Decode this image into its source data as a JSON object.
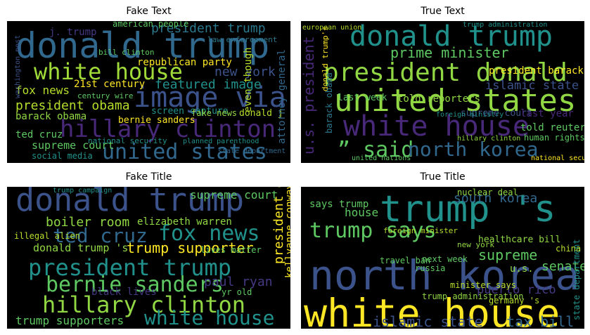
{
  "chart_data": [
    {
      "type": "wordcloud",
      "title": "Fake Text",
      "words": [
        {
          "text": "donald trump",
          "color": "#31688e"
        },
        {
          "text": "white house",
          "color": "#a0da39"
        },
        {
          "text": "president trump",
          "color": "#2a788e"
        },
        {
          "text": "american people",
          "color": "#5ec962"
        },
        {
          "text": "new york",
          "color": "#3b528b"
        },
        {
          "text": "republican party",
          "color": "#fde725"
        },
        {
          "text": "image via",
          "color": "#3b528b"
        },
        {
          "text": "featured image",
          "color": "#21918c"
        },
        {
          "text": "fox news",
          "color": "#b5de2b"
        },
        {
          "text": "21st century",
          "color": "#fde725"
        },
        {
          "text": "president obama",
          "color": "#b5de2b"
        },
        {
          "text": "barack obama",
          "color": "#90d743"
        },
        {
          "text": "hillary clinton",
          "color": "#482878"
        },
        {
          "text": "united states",
          "color": "#31688e"
        },
        {
          "text": "supreme court",
          "color": "#5ec962"
        },
        {
          "text": "ted cruz",
          "color": "#5ec962"
        },
        {
          "text": "bernie sanders",
          "color": "#fde725"
        },
        {
          "text": "national security",
          "color": "#21918c"
        },
        {
          "text": "social media",
          "color": "#21918c"
        },
        {
          "text": "screen capture",
          "color": "#21918c"
        },
        {
          "text": "fake news",
          "color": "#90d743"
        },
        {
          "text": "donald j",
          "color": "#b5de2b"
        },
        {
          "text": "law enforcement",
          "color": "#2a788e"
        },
        {
          "text": "even though",
          "color": "#b5de2b"
        },
        {
          "text": "attorney general",
          "color": "#31688e"
        },
        {
          "text": "washington post",
          "color": "#3b528b"
        },
        {
          "text": "century wire",
          "color": "#5ec962"
        },
        {
          "text": "j. trump",
          "color": "#443983"
        },
        {
          "text": "bill clinton",
          "color": "#5ec962"
        },
        {
          "text": "planned parenthood",
          "color": "#21918c"
        },
        {
          "text": "state department",
          "color": "#31688e"
        }
      ]
    },
    {
      "type": "wordcloud",
      "title": "True Text",
      "words": [
        {
          "text": "donald trump",
          "color": "#21918c"
        },
        {
          "text": "prime minister",
          "color": "#5ec962"
        },
        {
          "text": "president donald",
          "color": "#90d743"
        },
        {
          "text": "united states",
          "color": "#90d743"
        },
        {
          "text": "white house",
          "color": "#482878"
        },
        {
          "text": "” said",
          "color": "#5ec962"
        },
        {
          "text": "north korea",
          "color": "#31688e"
        },
        {
          "text": "islamic state",
          "color": "#3b528b"
        },
        {
          "text": "president barack",
          "color": "#fde725"
        },
        {
          "text": "last week",
          "color": "#5ec962"
        },
        {
          "text": "told reporters",
          "color": "#90d743"
        },
        {
          "text": "told reuters",
          "color": "#5ec962"
        },
        {
          "text": "supreme court",
          "color": "#3b528b"
        },
        {
          "text": "last year",
          "color": "#482878"
        },
        {
          "text": "human rights",
          "color": "#5ec962"
        },
        {
          "text": "u.s. president",
          "color": "#482878"
        },
        {
          "text": "donald trump's",
          "color": "#fde725"
        },
        {
          "text": "barack obama",
          "color": "#2a788e"
        },
        {
          "text": "united nations",
          "color": "#5ec962"
        },
        {
          "text": "national security",
          "color": "#fde725"
        },
        {
          "text": "trump administration",
          "color": "#21918c"
        },
        {
          "text": "european union",
          "color": "#b5de2b"
        },
        {
          "text": "foreign ministry",
          "color": "#21918c"
        },
        {
          "text": "hillary clinton",
          "color": "#90d743"
        }
      ]
    },
    {
      "type": "wordcloud",
      "title": "Fake Title",
      "words": [
        {
          "text": "donald trump",
          "color": "#3b528b"
        },
        {
          "text": "boiler room",
          "color": "#90d743"
        },
        {
          "text": "ted cruz",
          "color": "#31688e"
        },
        {
          "text": "fox news",
          "color": "#21918c"
        },
        {
          "text": "trump supporter",
          "color": "#fde725"
        },
        {
          "text": "elizabeth warren",
          "color": "#90d743"
        },
        {
          "text": "supreme court",
          "color": "#5ec962"
        },
        {
          "text": "president obama",
          "color": "#fde725"
        },
        {
          "text": "kellyanne conway",
          "color": "#fde725"
        },
        {
          "text": "donald trump 's",
          "color": "#90d743"
        },
        {
          "text": "president trump",
          "color": "#21918c"
        },
        {
          "text": "bernie sanders",
          "color": "#5ec962"
        },
        {
          "text": "hillary clinton",
          "color": "#90d743"
        },
        {
          "text": "white house",
          "color": "#21918c"
        },
        {
          "text": "trump supporters",
          "color": "#5ec962"
        },
        {
          "text": "paul ryan",
          "color": "#443983"
        },
        {
          "text": "black lives",
          "color": "#443983"
        },
        {
          "text": "lives matter",
          "color": "#5ec962"
        },
        {
          "text": "illegal alien",
          "color": "#b5de2b"
        },
        {
          "text": "trump campaign",
          "color": "#21918c"
        },
        {
          "text": "yr old",
          "color": "#5ec962"
        }
      ]
    },
    {
      "type": "wordcloud",
      "title": "True Title",
      "words": [
        {
          "text": "trump 's",
          "color": "#21918c"
        },
        {
          "text": "north korea",
          "color": "#3b528b"
        },
        {
          "text": "white house",
          "color": "#fde725"
        },
        {
          "text": "trump says",
          "color": "#5ec962"
        },
        {
          "text": "south korea",
          "color": "#31688e"
        },
        {
          "text": "says trump",
          "color": "#5ec962"
        },
        {
          "text": "healthcare bill",
          "color": "#90d743"
        },
        {
          "text": "supreme",
          "color": "#5ec962"
        },
        {
          "text": "senate",
          "color": "#5ec962"
        },
        {
          "text": "u.s.",
          "color": "#90d743"
        },
        {
          "text": "puerto rico",
          "color": "#443983"
        },
        {
          "text": "islamic state",
          "color": "#3b528b"
        },
        {
          "text": "tax bill",
          "color": "#31688e"
        },
        {
          "text": "house",
          "color": "#5ec962"
        },
        {
          "text": "travel ban",
          "color": "#5ec962"
        },
        {
          "text": "next week",
          "color": "#5ec962"
        },
        {
          "text": "trump administration",
          "color": "#90d743"
        },
        {
          "text": "nuclear deal",
          "color": "#90d743"
        },
        {
          "text": "foreign minister",
          "color": "#b5de2b"
        },
        {
          "text": "new york",
          "color": "#90d743"
        },
        {
          "text": "minister says",
          "color": "#b5de2b"
        },
        {
          "text": "russia",
          "color": "#5ec962"
        },
        {
          "text": "germany 's",
          "color": "#b5de2b"
        },
        {
          "text": "state department",
          "color": "#21918c"
        },
        {
          "text": "china 's",
          "color": "#b5de2b"
        }
      ]
    }
  ]
}
